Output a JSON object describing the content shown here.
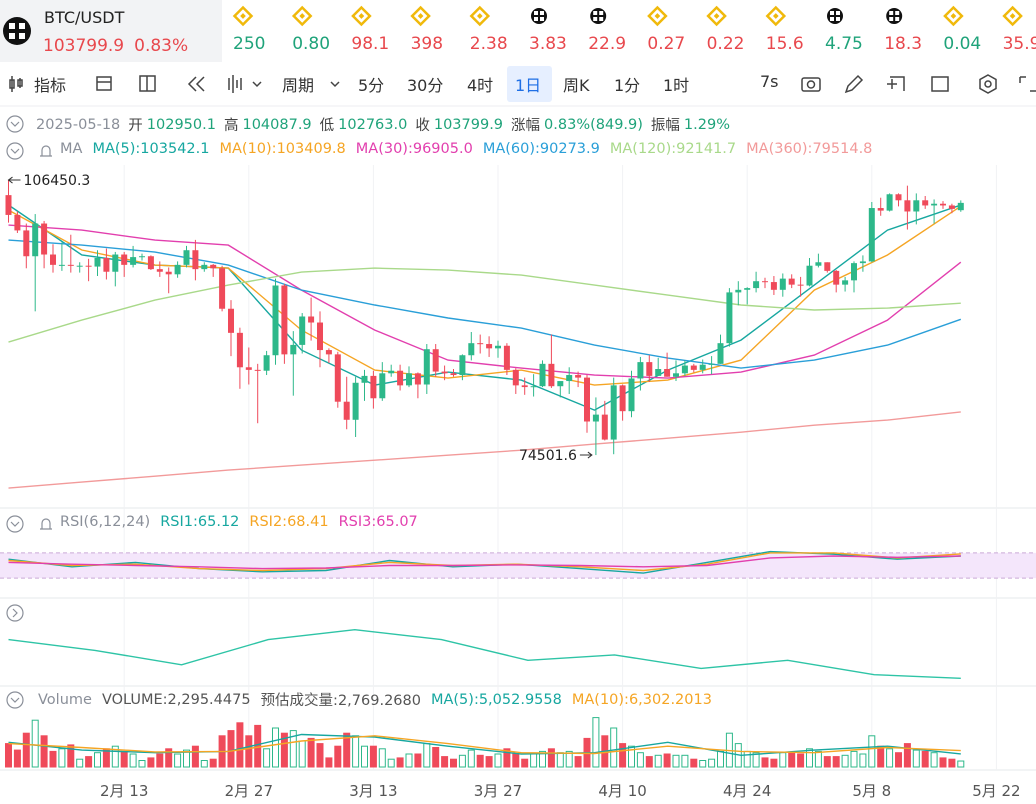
{
  "header": {
    "symbol": "BTC/USDT",
    "price": "103799.9",
    "change": "0.83%"
  },
  "tickers": [
    {
      "icon": "bnb",
      "value": "250",
      "color": "#1fa37a"
    },
    {
      "icon": "bnb",
      "value": "0.80",
      "color": "#1fa37a"
    },
    {
      "icon": "bnb",
      "value": "98.1",
      "color": "#e8484d"
    },
    {
      "icon": "bnb",
      "value": "398",
      "color": "#e8484d"
    },
    {
      "icon": "bnb",
      "value": "2.38",
      "color": "#e8484d"
    },
    {
      "icon": "check",
      "value": "3.83",
      "color": "#e8484d"
    },
    {
      "icon": "check",
      "value": "22.9",
      "color": "#e8484d"
    },
    {
      "icon": "bnb",
      "value": "0.27",
      "color": "#e8484d"
    },
    {
      "icon": "bnb",
      "value": "0.22",
      "color": "#e8484d"
    },
    {
      "icon": "bnb",
      "value": "15.6",
      "color": "#e8484d"
    },
    {
      "icon": "check",
      "value": "4.75",
      "color": "#1fa37a"
    },
    {
      "icon": "check",
      "value": "18.3",
      "color": "#e8484d"
    },
    {
      "icon": "bnb",
      "value": "0.04",
      "color": "#1fa37a"
    },
    {
      "icon": "bnb",
      "value": "35.9",
      "color": "#e8484d"
    }
  ],
  "toolbar": {
    "indicator": "指标",
    "period": "周期",
    "intervals": [
      "5分",
      "30分",
      "4时",
      "1日",
      "周K",
      "1分",
      "1时"
    ],
    "selected": 3,
    "refresh": "7s"
  },
  "info": {
    "date": "2025-05-18",
    "fields": [
      {
        "label": "开",
        "value": "102950.1"
      },
      {
        "label": "高",
        "value": "104087.9"
      },
      {
        "label": "低",
        "value": "102763.0"
      },
      {
        "label": "收",
        "value": "103799.9"
      },
      {
        "label": "涨幅",
        "value": "0.83%(849.9)"
      },
      {
        "label": "振幅",
        "value": "1.29%"
      }
    ]
  },
  "chart_data": [
    {
      "type": "candlestick",
      "title": "MA",
      "ylim": [
        68700,
        108200
      ],
      "up_color": "#2db88a",
      "down_color": "#ef4a5a",
      "xticks": [
        {
          "value": 13,
          "label": "2月 13"
        },
        {
          "value": 27,
          "label": "2月 27"
        },
        {
          "value": 41,
          "label": "3月 13"
        },
        {
          "value": 55,
          "label": "3月 27"
        },
        {
          "value": 69,
          "label": "4月 10"
        },
        {
          "value": 83,
          "label": "4月 24"
        },
        {
          "value": 97,
          "label": "5月 8"
        },
        {
          "value": 111,
          "label": "5月 22"
        }
      ],
      "high_label": {
        "index": 0,
        "value": 106450.3
      },
      "low_label": {
        "index": 66,
        "value": 74501.6
      },
      "candles": [
        [
          104700,
          106450.3,
          101500,
          102400
        ],
        [
          102400,
          102800,
          100300,
          100600
        ],
        [
          100600,
          101400,
          96200,
          97600
        ],
        [
          97600,
          102500,
          91200,
          101400
        ],
        [
          101400,
          101700,
          96200,
          97800
        ],
        [
          97800,
          99000,
          95700,
          96600
        ],
        [
          96600,
          99200,
          95900,
          96600
        ],
        [
          96600,
          100100,
          95700,
          96500
        ],
        [
          96500,
          96900,
          95700,
          96500
        ],
        [
          96500,
          97300,
          94700,
          96400
        ],
        [
          96400,
          98300,
          95300,
          97400
        ],
        [
          97400,
          98500,
          94900,
          95800
        ],
        [
          95800,
          98100,
          94100,
          97800
        ],
        [
          97800,
          98100,
          95200,
          96600
        ],
        [
          96600,
          98800,
          96300,
          97500
        ],
        [
          97500,
          97900,
          97100,
          97600
        ],
        [
          97600,
          97700,
          96000,
          96100
        ],
        [
          96100,
          97000,
          95200,
          95800
        ],
        [
          95800,
          96300,
          93300,
          95500
        ],
        [
          95500,
          97000,
          95100,
          96600
        ],
        [
          96600,
          98800,
          96300,
          98300
        ],
        [
          98300,
          99500,
          94800,
          96100
        ],
        [
          96100,
          96900,
          95800,
          96600
        ],
        [
          96600,
          96700,
          95200,
          96200
        ],
        [
          96200,
          96500,
          91200,
          91500
        ],
        [
          91500,
          92500,
          86000,
          88700
        ],
        [
          88700,
          89300,
          82200,
          84700
        ],
        [
          84700,
          87000,
          82700,
          84400
        ],
        [
          84400,
          85100,
          78200,
          84300
        ],
        [
          84300,
          86600,
          83800,
          86100
        ],
        [
          86100,
          95000,
          85000,
          94200
        ],
        [
          94200,
          94400,
          85100,
          86200
        ],
        [
          86200,
          88900,
          81400,
          87300
        ],
        [
          87300,
          91000,
          86300,
          90600
        ],
        [
          90600,
          92800,
          87800,
          89900
        ],
        [
          89900,
          91200,
          84700,
          86700
        ],
        [
          86700,
          86900,
          85200,
          86200
        ],
        [
          86200,
          86500,
          80000,
          80700
        ],
        [
          80700,
          83600,
          77500,
          78600
        ],
        [
          78600,
          83600,
          76600,
          82900
        ],
        [
          82900,
          84400,
          80800,
          83700
        ],
        [
          83700,
          84300,
          79900,
          81100
        ],
        [
          81100,
          85300,
          80800,
          84000
        ],
        [
          84000,
          85000,
          83600,
          84300
        ],
        [
          84300,
          85000,
          82000,
          82600
        ],
        [
          82600,
          84800,
          82400,
          84000
        ],
        [
          84000,
          84100,
          81100,
          82700
        ],
        [
          82700,
          87400,
          81600,
          86800
        ],
        [
          86800,
          87400,
          83600,
          84200
        ],
        [
          84200,
          84900,
          83200,
          84000
        ],
        [
          84000,
          84500,
          83600,
          83800
        ],
        [
          83800,
          86200,
          83200,
          86100
        ],
        [
          86100,
          88800,
          85500,
          87500
        ],
        [
          87500,
          88500,
          86300,
          87400
        ],
        [
          87400,
          88300,
          85900,
          86900
        ],
        [
          86900,
          87800,
          85800,
          87200
        ],
        [
          87200,
          87500,
          83800,
          84400
        ],
        [
          84400,
          84600,
          81600,
          82600
        ],
        [
          82600,
          83500,
          81500,
          82400
        ],
        [
          82400,
          83900,
          81300,
          82500
        ],
        [
          82500,
          85500,
          82400,
          85100
        ],
        [
          85100,
          88500,
          82300,
          82500
        ],
        [
          82500,
          83000,
          81200,
          83100
        ],
        [
          83100,
          84700,
          81600,
          83800
        ],
        [
          83800,
          84200,
          82400,
          83500
        ],
        [
          83500,
          83800,
          77100,
          78400
        ],
        [
          78400,
          81200,
          74501.6,
          79200
        ],
        [
          79200,
          80800,
          76200,
          76300
        ],
        [
          76300,
          83500,
          74600,
          82600
        ],
        [
          82600,
          82700,
          78500,
          79600
        ],
        [
          79600,
          84300,
          78900,
          83400
        ],
        [
          83400,
          85900,
          82000,
          85300
        ],
        [
          85300,
          86100,
          83000,
          83700
        ],
        [
          83700,
          85800,
          83700,
          84500
        ],
        [
          84500,
          86400,
          83600,
          83600
        ],
        [
          83600,
          85500,
          83100,
          84000
        ],
        [
          84000,
          85500,
          83700,
          84900
        ],
        [
          84900,
          85100,
          84100,
          84400
        ],
        [
          84400,
          85600,
          84000,
          85000
        ],
        [
          85000,
          86000,
          83900,
          85100
        ],
        [
          85100,
          88500,
          85100,
          87500
        ],
        [
          87500,
          93900,
          87100,
          93400
        ],
        [
          93400,
          94700,
          91900,
          93700
        ],
        [
          93700,
          94000,
          92000,
          93900
        ],
        [
          93900,
          95800,
          93400,
          94700
        ],
        [
          94700,
          95100,
          93900,
          94600
        ],
        [
          94600,
          95300,
          93100,
          93700
        ],
        [
          93700,
          95600,
          92900,
          95000
        ],
        [
          95000,
          95500,
          93900,
          94300
        ],
        [
          94300,
          95200,
          92900,
          94200
        ],
        [
          94200,
          97400,
          94100,
          96500
        ],
        [
          96500,
          97900,
          96300,
          96900
        ],
        [
          96900,
          96900,
          95700,
          95900
        ],
        [
          95900,
          96000,
          93400,
          94300
        ],
        [
          94300,
          95200,
          93500,
          94800
        ],
        [
          94800,
          97000,
          93400,
          96800
        ],
        [
          96800,
          97700,
          95800,
          97000
        ],
        [
          97000,
          103900,
          96900,
          103200
        ],
        [
          103200,
          104400,
          102300,
          102900
        ],
        [
          102900,
          104900,
          102800,
          104800
        ],
        [
          104800,
          104900,
          103400,
          104100
        ],
        [
          104100,
          105800,
          100700,
          102800
        ],
        [
          102800,
          104900,
          101300,
          104100
        ],
        [
          104100,
          104600,
          103100,
          103500
        ],
        [
          103500,
          104200,
          101400,
          103700
        ],
        [
          103700,
          104000,
          103100,
          103500
        ],
        [
          103500,
          103700,
          102600,
          103100
        ],
        [
          102950.1,
          104087.9,
          102763.0,
          103799.9
        ]
      ],
      "series": [
        {
          "name": "MA(5):103542.1",
          "color": "#17a7a0",
          "values": [
            103550,
            97740,
            96570,
            96220,
            86700,
            82630,
            84140,
            83210,
            79730,
            84370,
            87860,
            94250,
            100640,
            103542.1
          ]
        },
        {
          "name": "MA(10):103409.8",
          "color": "#f5a524",
          "values": [
            102960,
            98320,
            96570,
            96220,
            89020,
            84370,
            83440,
            84370,
            82630,
            83210,
            85530,
            93670,
            97740,
            103409.8
          ]
        },
        {
          "name": "MA(30):96905.0",
          "color": "#e23fae",
          "values": [
            101220,
            100640,
            99480,
            98900,
            93670,
            89020,
            85530,
            84610,
            83790,
            83440,
            84140,
            86110,
            90180,
            96905.0
          ]
        },
        {
          "name": "MA(60):90273.9",
          "color": "#2a9fd8",
          "values": [
            99480,
            98900,
            98080,
            96570,
            93670,
            91930,
            90420,
            89250,
            87280,
            85770,
            84610,
            85530,
            87280,
            90273.9
          ]
        },
        {
          "name": "MA(120):92141.7",
          "color": "#a9d98a",
          "values": [
            87620,
            90180,
            92510,
            94250,
            95760,
            96220,
            95990,
            95410,
            94250,
            93090,
            91930,
            91350,
            91580,
            92141.7
          ]
        },
        {
          "name": "MA(360):79514.8",
          "color": "#f29a9a",
          "values": [
            70660,
            71360,
            72050,
            72750,
            73330,
            73910,
            74490,
            75070,
            75770,
            76460,
            77160,
            77970,
            78560,
            79514.8
          ]
        }
      ]
    },
    {
      "type": "line",
      "title": "RSI(6,12,24)",
      "ylim": [
        0,
        100
      ],
      "bands": [
        30,
        70
      ],
      "series": [
        {
          "name": "RSI1:65.12",
          "color": "#17a7a0",
          "values": [
            60,
            48,
            55,
            45,
            40,
            42,
            58,
            48,
            52,
            45,
            38,
            55,
            72,
            68,
            60,
            65.12
          ]
        },
        {
          "name": "RSI2:68.41",
          "color": "#f5a524",
          "values": [
            58,
            50,
            52,
            45,
            42,
            45,
            55,
            50,
            52,
            48,
            42,
            52,
            70,
            70,
            62,
            68.41
          ]
        },
        {
          "name": "RSI3:65.07",
          "color": "#e23fae",
          "values": [
            55,
            52,
            50,
            48,
            45,
            46,
            50,
            50,
            51,
            50,
            48,
            50,
            62,
            65,
            63,
            65.07
          ]
        }
      ]
    },
    {
      "type": "line",
      "ylim": [
        0,
        100
      ],
      "series": [
        {
          "color": "#2ec4a6",
          "values": [
            56,
            44,
            28,
            56,
            67,
            56,
            33,
            39,
            24,
            33,
            17,
            13
          ]
        }
      ]
    },
    {
      "type": "volume",
      "title": "Volume",
      "ylim": [
        0,
        20000
      ],
      "legend": [
        "VOLUME:2,295.4475",
        "预估成交量:2,769.2680"
      ],
      "values": [
        9000,
        6500,
        13000,
        18000,
        12000,
        6000,
        7000,
        8500,
        3000,
        4000,
        5500,
        7000,
        8000,
        6000,
        5000,
        2500,
        3500,
        5000,
        7000,
        5000,
        6500,
        8000,
        2500,
        3000,
        12000,
        14000,
        17000,
        12000,
        16000,
        7000,
        15000,
        13000,
        14000,
        10000,
        11000,
        9000,
        3500,
        8000,
        13000,
        12000,
        8000,
        8000,
        7000,
        3000,
        3500,
        5000,
        5000,
        9000,
        7500,
        4000,
        3000,
        4500,
        6500,
        4500,
        4000,
        5000,
        7000,
        5000,
        3000,
        5000,
        6000,
        7000,
        5500,
        6000,
        4000,
        11000,
        19000,
        12000,
        15000,
        9000,
        8000,
        5500,
        4000,
        4500,
        5000,
        4500,
        4500,
        3000,
        2500,
        3000,
        6000,
        13000,
        9000,
        6000,
        5500,
        3500,
        3000,
        5500,
        5500,
        5000,
        7000,
        6000,
        4000,
        4000,
        4500,
        6000,
        5000,
        12000,
        8000,
        7000,
        5500,
        9000,
        6500,
        6000,
        5500,
        3500,
        3000,
        2295.4475
      ],
      "series": [
        {
          "name": "MA(5):5,052.9558",
          "color": "#17a7a0",
          "values": [
            9500,
            6500,
            5500,
            6000,
            12500,
            11500,
            8000,
            5000,
            5500,
            9500,
            4500,
            6500,
            8000,
            5052.9558
          ]
        },
        {
          "name": "MA(10):6,302.2013",
          "color": "#f5a524",
          "values": [
            9000,
            7500,
            5800,
            6000,
            10000,
            12000,
            9000,
            5500,
            5200,
            8000,
            6000,
            5500,
            7500,
            6302.2013
          ]
        }
      ]
    }
  ]
}
